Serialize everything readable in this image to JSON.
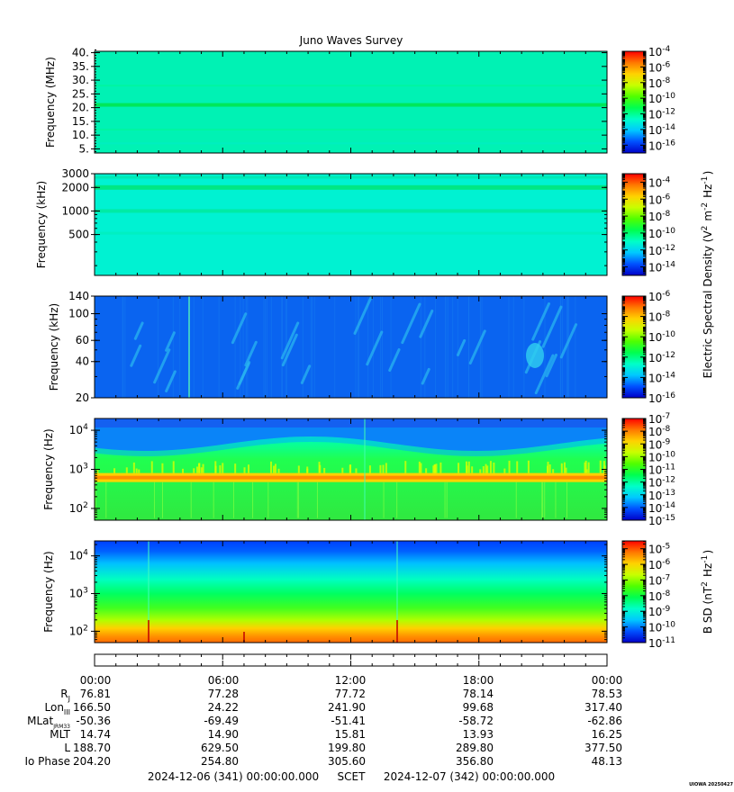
{
  "title": "Juno Waves Survey",
  "colors": {
    "spectrum": [
      "#0000c8",
      "#0050ff",
      "#00c8ff",
      "#00ffc8",
      "#00ff50",
      "#50ff00",
      "#c8ff00",
      "#ffd200",
      "#ff7800",
      "#ff0000"
    ]
  },
  "chart_data": [
    {
      "type": "heatmap",
      "ylabel": "Frequency (MHz)",
      "yscale": "linear",
      "ylim": [
        3.5,
        40.5
      ],
      "yticks": [
        5,
        10,
        15,
        20,
        25,
        30,
        35,
        40
      ],
      "ytick_labels": [
        "5.",
        "10.",
        "15.",
        "20.",
        "25.",
        "30.",
        "35.",
        "40."
      ],
      "colorbar": {
        "label": "",
        "scale": "log",
        "range_exp": [
          -17,
          -4
        ],
        "tick_exps": [
          -16,
          -14,
          -12,
          -10,
          -8,
          -6,
          -4
        ]
      }
    },
    {
      "type": "heatmap",
      "ylabel": "Frequency (kHz)",
      "yscale": "log",
      "ylim": [
        150,
        3000
      ],
      "yticks": [
        500,
        1000,
        2000,
        3000
      ],
      "ytick_labels": [
        "500",
        "1000",
        "2000",
        "3000"
      ],
      "colorbar": {
        "label": "",
        "scale": "log",
        "range_exp": [
          -15,
          -3
        ],
        "tick_exps": [
          -14,
          -12,
          -10,
          -8,
          -6,
          -4
        ]
      }
    },
    {
      "type": "heatmap",
      "ylabel": "Frequency (kHz)",
      "yscale": "log",
      "ylim": [
        20,
        140
      ],
      "yticks": [
        20,
        40,
        60,
        100,
        140
      ],
      "ytick_labels": [
        "20",
        "40",
        "60",
        "100",
        "140"
      ],
      "colorbar": {
        "label": "",
        "scale": "log",
        "range_exp": [
          -16,
          -6
        ],
        "tick_exps": [
          -16,
          -14,
          -12,
          -10,
          -8,
          -6
        ]
      }
    },
    {
      "type": "heatmap",
      "ylabel": "Frequency (Hz)",
      "yscale": "log",
      "ylim": [
        50,
        20000
      ],
      "yticks": [
        100,
        1000,
        10000
      ],
      "ytick_labels": [
        "10^2",
        "10^3",
        "10^4"
      ],
      "colorbar": {
        "label": "",
        "scale": "log",
        "range_exp": [
          -15,
          -7
        ],
        "tick_exps": [
          -15,
          -14,
          -13,
          -12,
          -11,
          -10,
          -9,
          -8,
          -7
        ]
      }
    },
    {
      "type": "heatmap",
      "ylabel": "Frequency (Hz)",
      "yscale": "log",
      "ylim": [
        50,
        25000
      ],
      "yticks": [
        100,
        1000,
        10000
      ],
      "ytick_labels": [
        "10^2",
        "10^3",
        "10^4"
      ],
      "colorbar": {
        "label": "B SD (nT^2 Hz^-1)",
        "scale": "log",
        "range_exp": [
          -11,
          -4.5
        ],
        "tick_exps": [
          -11,
          -10,
          -9,
          -8,
          -7,
          -6,
          -5
        ]
      }
    }
  ],
  "shared_colorbar_label": "Electric Spectral Density (V^2 m^-2 Hz^-1)",
  "x_axis": {
    "time_labels": [
      "00:00",
      "06:00",
      "12:00",
      "18:00",
      "00:00"
    ]
  },
  "ephemeris": [
    {
      "label": "R",
      "sub": "J",
      "values": [
        "76.81",
        "77.28",
        "77.72",
        "78.14",
        "78.53"
      ]
    },
    {
      "label": "Lon",
      "sub": "III",
      "values": [
        "166.50",
        "24.22",
        "241.90",
        "99.68",
        "317.40"
      ]
    },
    {
      "label": "MLat",
      "sub": "JRM33",
      "values": [
        "-50.36",
        "-69.49",
        "-51.41",
        "-58.72",
        "-62.86"
      ]
    },
    {
      "label": "MLT",
      "sub": "",
      "values": [
        "14.74",
        "14.90",
        "15.81",
        "13.93",
        "16.25"
      ]
    },
    {
      "label": "L",
      "sub": "",
      "values": [
        "188.70",
        "629.50",
        "199.80",
        "289.80",
        "377.50"
      ]
    },
    {
      "label": "Io Phase",
      "sub": "",
      "values": [
        "204.20",
        "254.80",
        "305.60",
        "356.80",
        "48.13"
      ]
    }
  ],
  "footer": {
    "start": "2024-12-06 (341) 00:00:00.000",
    "scet": "SCET",
    "end": "2024-12-07 (342) 00:00:00.000",
    "credit": "UIOWA 20250427"
  }
}
